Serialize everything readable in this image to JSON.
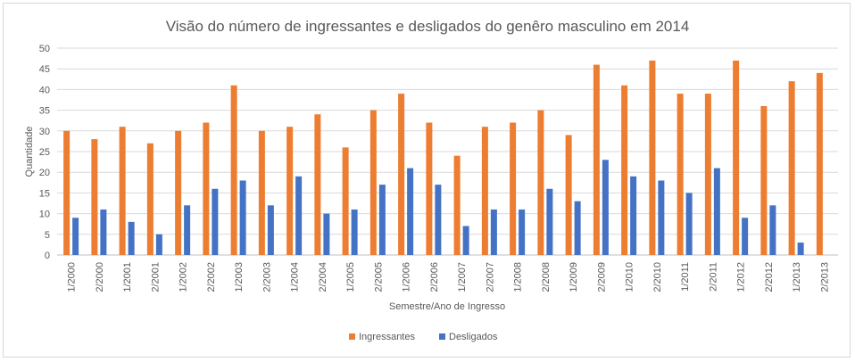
{
  "chart_data": {
    "type": "bar",
    "title": "Visão do número de ingressantes e desligados do genêro masculino em 2014",
    "xlabel": "Semestre/Ano de Ingresso",
    "ylabel": "Quantidade",
    "ylim": [
      0,
      50
    ],
    "yticks": [
      0,
      5,
      10,
      15,
      20,
      25,
      30,
      35,
      40,
      45,
      50
    ],
    "grid": true,
    "legend_position": "bottom",
    "categories": [
      "1/2000",
      "2/2000",
      "1/2001",
      "2/2001",
      "1/2002",
      "2/2002",
      "1/2003",
      "2/2003",
      "1/2004",
      "2/2004",
      "1/2005",
      "2/2005",
      "1/2006",
      "2/2006",
      "1/2007",
      "2/2007",
      "1/2008",
      "2/2008",
      "1/2009",
      "2/2009",
      "1/2010",
      "2/2010",
      "1/2011",
      "2/2011",
      "1/2012",
      "2/2012",
      "1/2013",
      "2/2013"
    ],
    "series": [
      {
        "name": "Ingressantes",
        "color": "#ED7D31",
        "values": [
          30,
          28,
          31,
          27,
          30,
          32,
          41,
          30,
          31,
          34,
          26,
          35,
          39,
          32,
          24,
          31,
          32,
          35,
          29,
          46,
          41,
          47,
          39,
          39,
          47,
          36,
          42,
          44
        ]
      },
      {
        "name": "Desligados",
        "color": "#4472C4",
        "values": [
          9,
          11,
          8,
          5,
          12,
          16,
          18,
          12,
          19,
          10,
          11,
          17,
          21,
          17,
          7,
          11,
          11,
          16,
          13,
          23,
          19,
          18,
          15,
          21,
          9,
          12,
          3,
          null
        ]
      }
    ]
  }
}
